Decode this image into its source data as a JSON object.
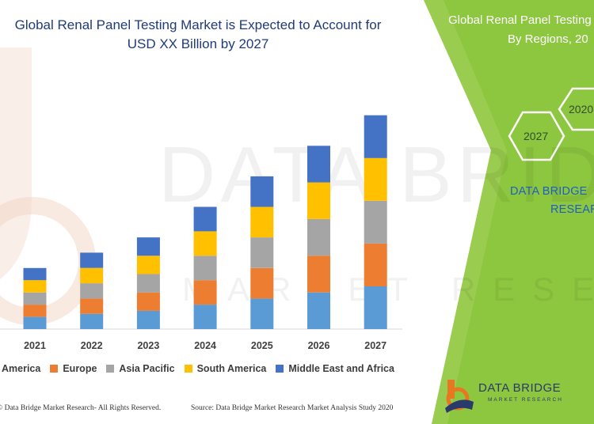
{
  "header": {
    "title_line1": "Global Renal Panel Testing Market is Expected to Account for",
    "title_line2": "USD XX Billion by 2027"
  },
  "side_panel": {
    "title_line1": "Global Renal Panel Testing",
    "title_line2": "By Regions, 20",
    "hex_years": [
      "2027",
      "2020"
    ],
    "brand_line1": "DATA BRIDGE",
    "brand_line2": "RESEAR",
    "accent_color": "#8dc63f"
  },
  "watermark": {
    "line1": "DATA BRIDGE",
    "line2": "MARKET RESEARCH"
  },
  "chart_data": {
    "type": "bar",
    "stacked": true,
    "categories": [
      "2021",
      "2022",
      "2023",
      "2024",
      "2025",
      "2026",
      "2027"
    ],
    "series": [
      {
        "name": "America",
        "color": "#5b9bd5",
        "values": [
          16,
          20,
          24,
          32,
          40,
          48,
          56
        ]
      },
      {
        "name": "Europe",
        "color": "#ed7d31",
        "values": [
          16,
          20,
          24,
          32,
          40,
          48,
          56
        ]
      },
      {
        "name": "Asia Pacific",
        "color": "#a5a5a5",
        "values": [
          16,
          20,
          24,
          32,
          40,
          48,
          56
        ]
      },
      {
        "name": "South America",
        "color": "#ffc000",
        "values": [
          16,
          20,
          24,
          32,
          40,
          48,
          56
        ]
      },
      {
        "name": "Middle East and Africa",
        "color": "#4472c4",
        "values": [
          16,
          20,
          24,
          32,
          40,
          48,
          56
        ]
      }
    ],
    "ylim": [
      0,
      290
    ],
    "grid": false,
    "legend_position": "bottom",
    "xlabel": "",
    "ylabel": ""
  },
  "footer": {
    "copyright": "© Data Bridge Market Research- All Rights Reserved.",
    "source": "Source: Data Bridge Market Research Market Analysis Study 2020"
  },
  "logo": {
    "line1": "DATA BRIDGE",
    "line2": "MARKET RESEARCH"
  }
}
